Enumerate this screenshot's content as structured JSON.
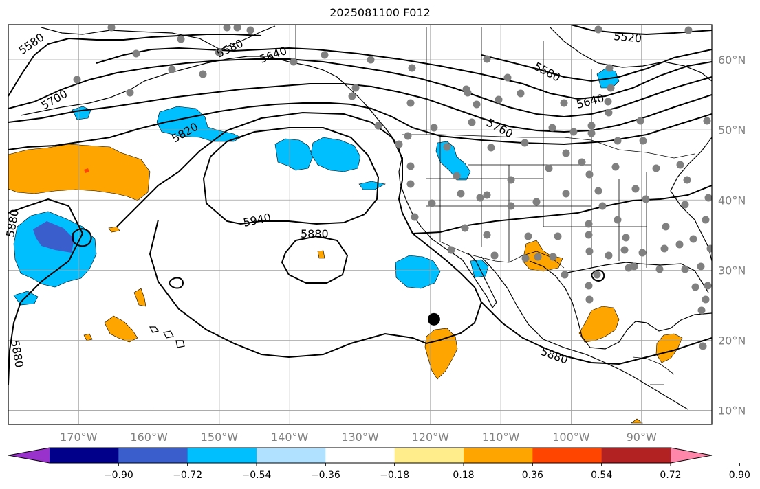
{
  "title": "2025081100 F012",
  "map": {
    "lon_range": [
      -180,
      -80
    ],
    "lat_range": [
      8,
      65
    ],
    "lat_ticks": [
      {
        "value": 10,
        "label": "10°N"
      },
      {
        "value": 20,
        "label": "20°N"
      },
      {
        "value": 30,
        "label": "30°N"
      },
      {
        "value": 40,
        "label": "40°N"
      },
      {
        "value": 50,
        "label": "50°N"
      },
      {
        "value": 60,
        "label": "60°N"
      }
    ],
    "lon_ticks": [
      {
        "value": -170,
        "label": "170°W"
      },
      {
        "value": -160,
        "label": "160°W"
      },
      {
        "value": -150,
        "label": "150°W"
      },
      {
        "value": -140,
        "label": "140°W"
      },
      {
        "value": -130,
        "label": "130°W"
      },
      {
        "value": -120,
        "label": "120°W"
      },
      {
        "value": -110,
        "label": "110°W"
      },
      {
        "value": -100,
        "label": "100°W"
      },
      {
        "value": -90,
        "label": "90°W"
      }
    ],
    "contour_labels": [
      "5580",
      "5580",
      "5640",
      "5520",
      "5580",
      "5640",
      "5700",
      "5760",
      "5820",
      "5940",
      "5880",
      "5880",
      "5880",
      "5880"
    ],
    "marker": {
      "lon": -119.5,
      "lat": 23.0
    }
  },
  "colorbar": {
    "colors": [
      "#9932cc",
      "#00008b",
      "#3a5fcd",
      "#00bfff",
      "#b0e2ff",
      "#ffffff",
      "#ffec8b",
      "#ffa500",
      "#ff4500",
      "#b22222",
      "#ff88aa"
    ],
    "tick_labels": [
      "−0.90",
      "−0.72",
      "−0.54",
      "−0.36",
      "−0.18",
      "0.18",
      "0.36",
      "0.54",
      "0.72",
      "0.90"
    ]
  }
}
